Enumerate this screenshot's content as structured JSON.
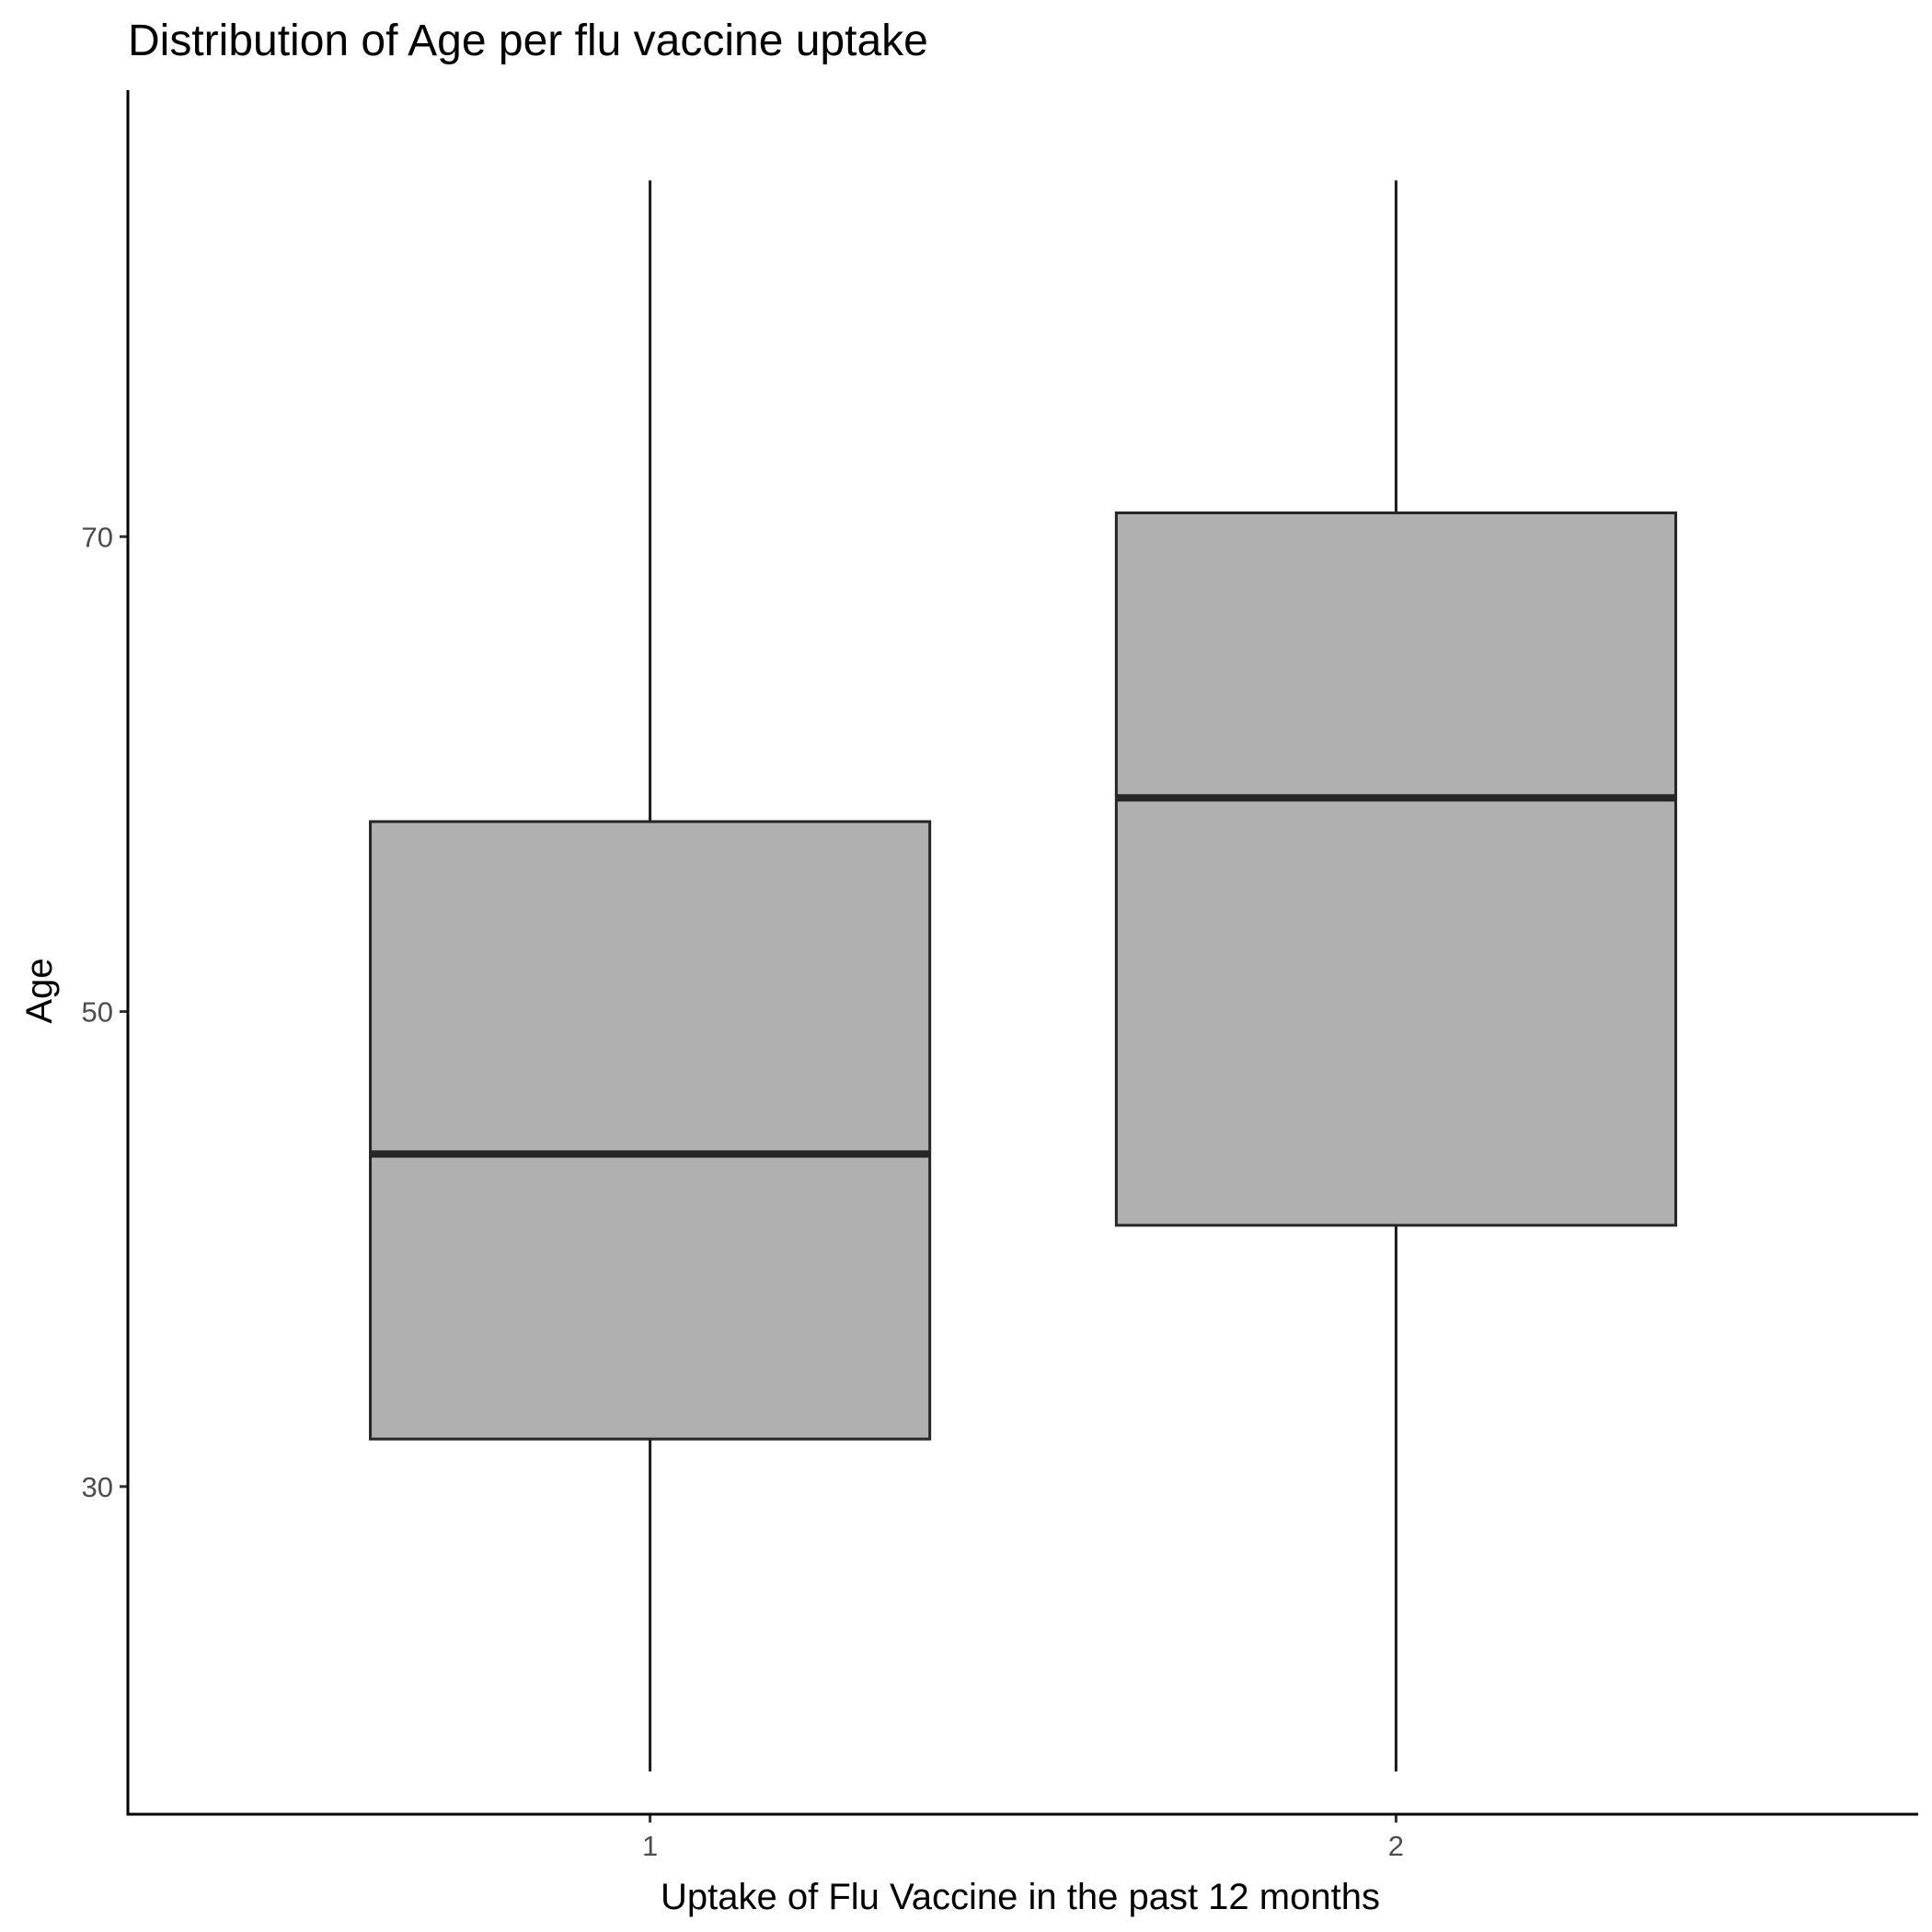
{
  "chart_data": {
    "type": "boxplot",
    "title": "Distribution of Age per flu vaccine uptake",
    "xlabel": "Uptake of Flu Vaccine in the past 12 months",
    "ylabel": "Age",
    "categories": [
      "1",
      "2"
    ],
    "boxes": [
      {
        "category": "1",
        "whisker_low": 18,
        "q1": 32,
        "median": 44,
        "q3": 58,
        "whisker_high": 85
      },
      {
        "category": "2",
        "whisker_low": 18,
        "q1": 41,
        "median": 59,
        "q3": 71,
        "whisker_high": 85
      }
    ],
    "ylim": [
      16.2,
      88.8
    ],
    "yticks": [
      30,
      50,
      70
    ],
    "grid": false,
    "box_fill": "#b0b0b0",
    "line_color": "#262626"
  }
}
